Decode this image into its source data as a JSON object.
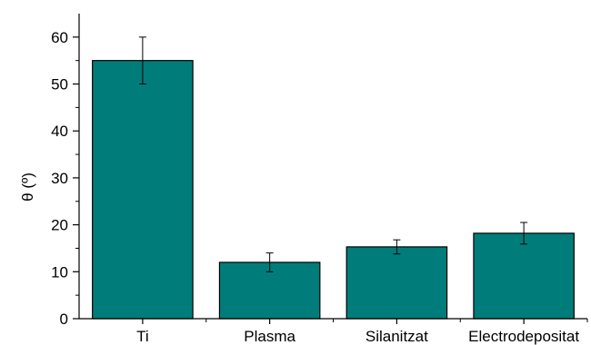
{
  "chart_data": {
    "type": "bar",
    "title": "",
    "xlabel": "",
    "ylabel": "θ (º)",
    "categories": [
      "Ti",
      "Plasma",
      "Silanitzat",
      "Electrodepositat"
    ],
    "values": [
      55,
      12,
      15.3,
      18.2
    ],
    "errors": [
      5,
      2,
      1.5,
      2.3
    ],
    "ylim": [
      0,
      65
    ],
    "yticks": [
      0,
      10,
      20,
      30,
      40,
      50,
      60
    ],
    "bar_color": "#007d7a",
    "bar_edge_color": "#000000",
    "grid": false,
    "legend": "none"
  }
}
